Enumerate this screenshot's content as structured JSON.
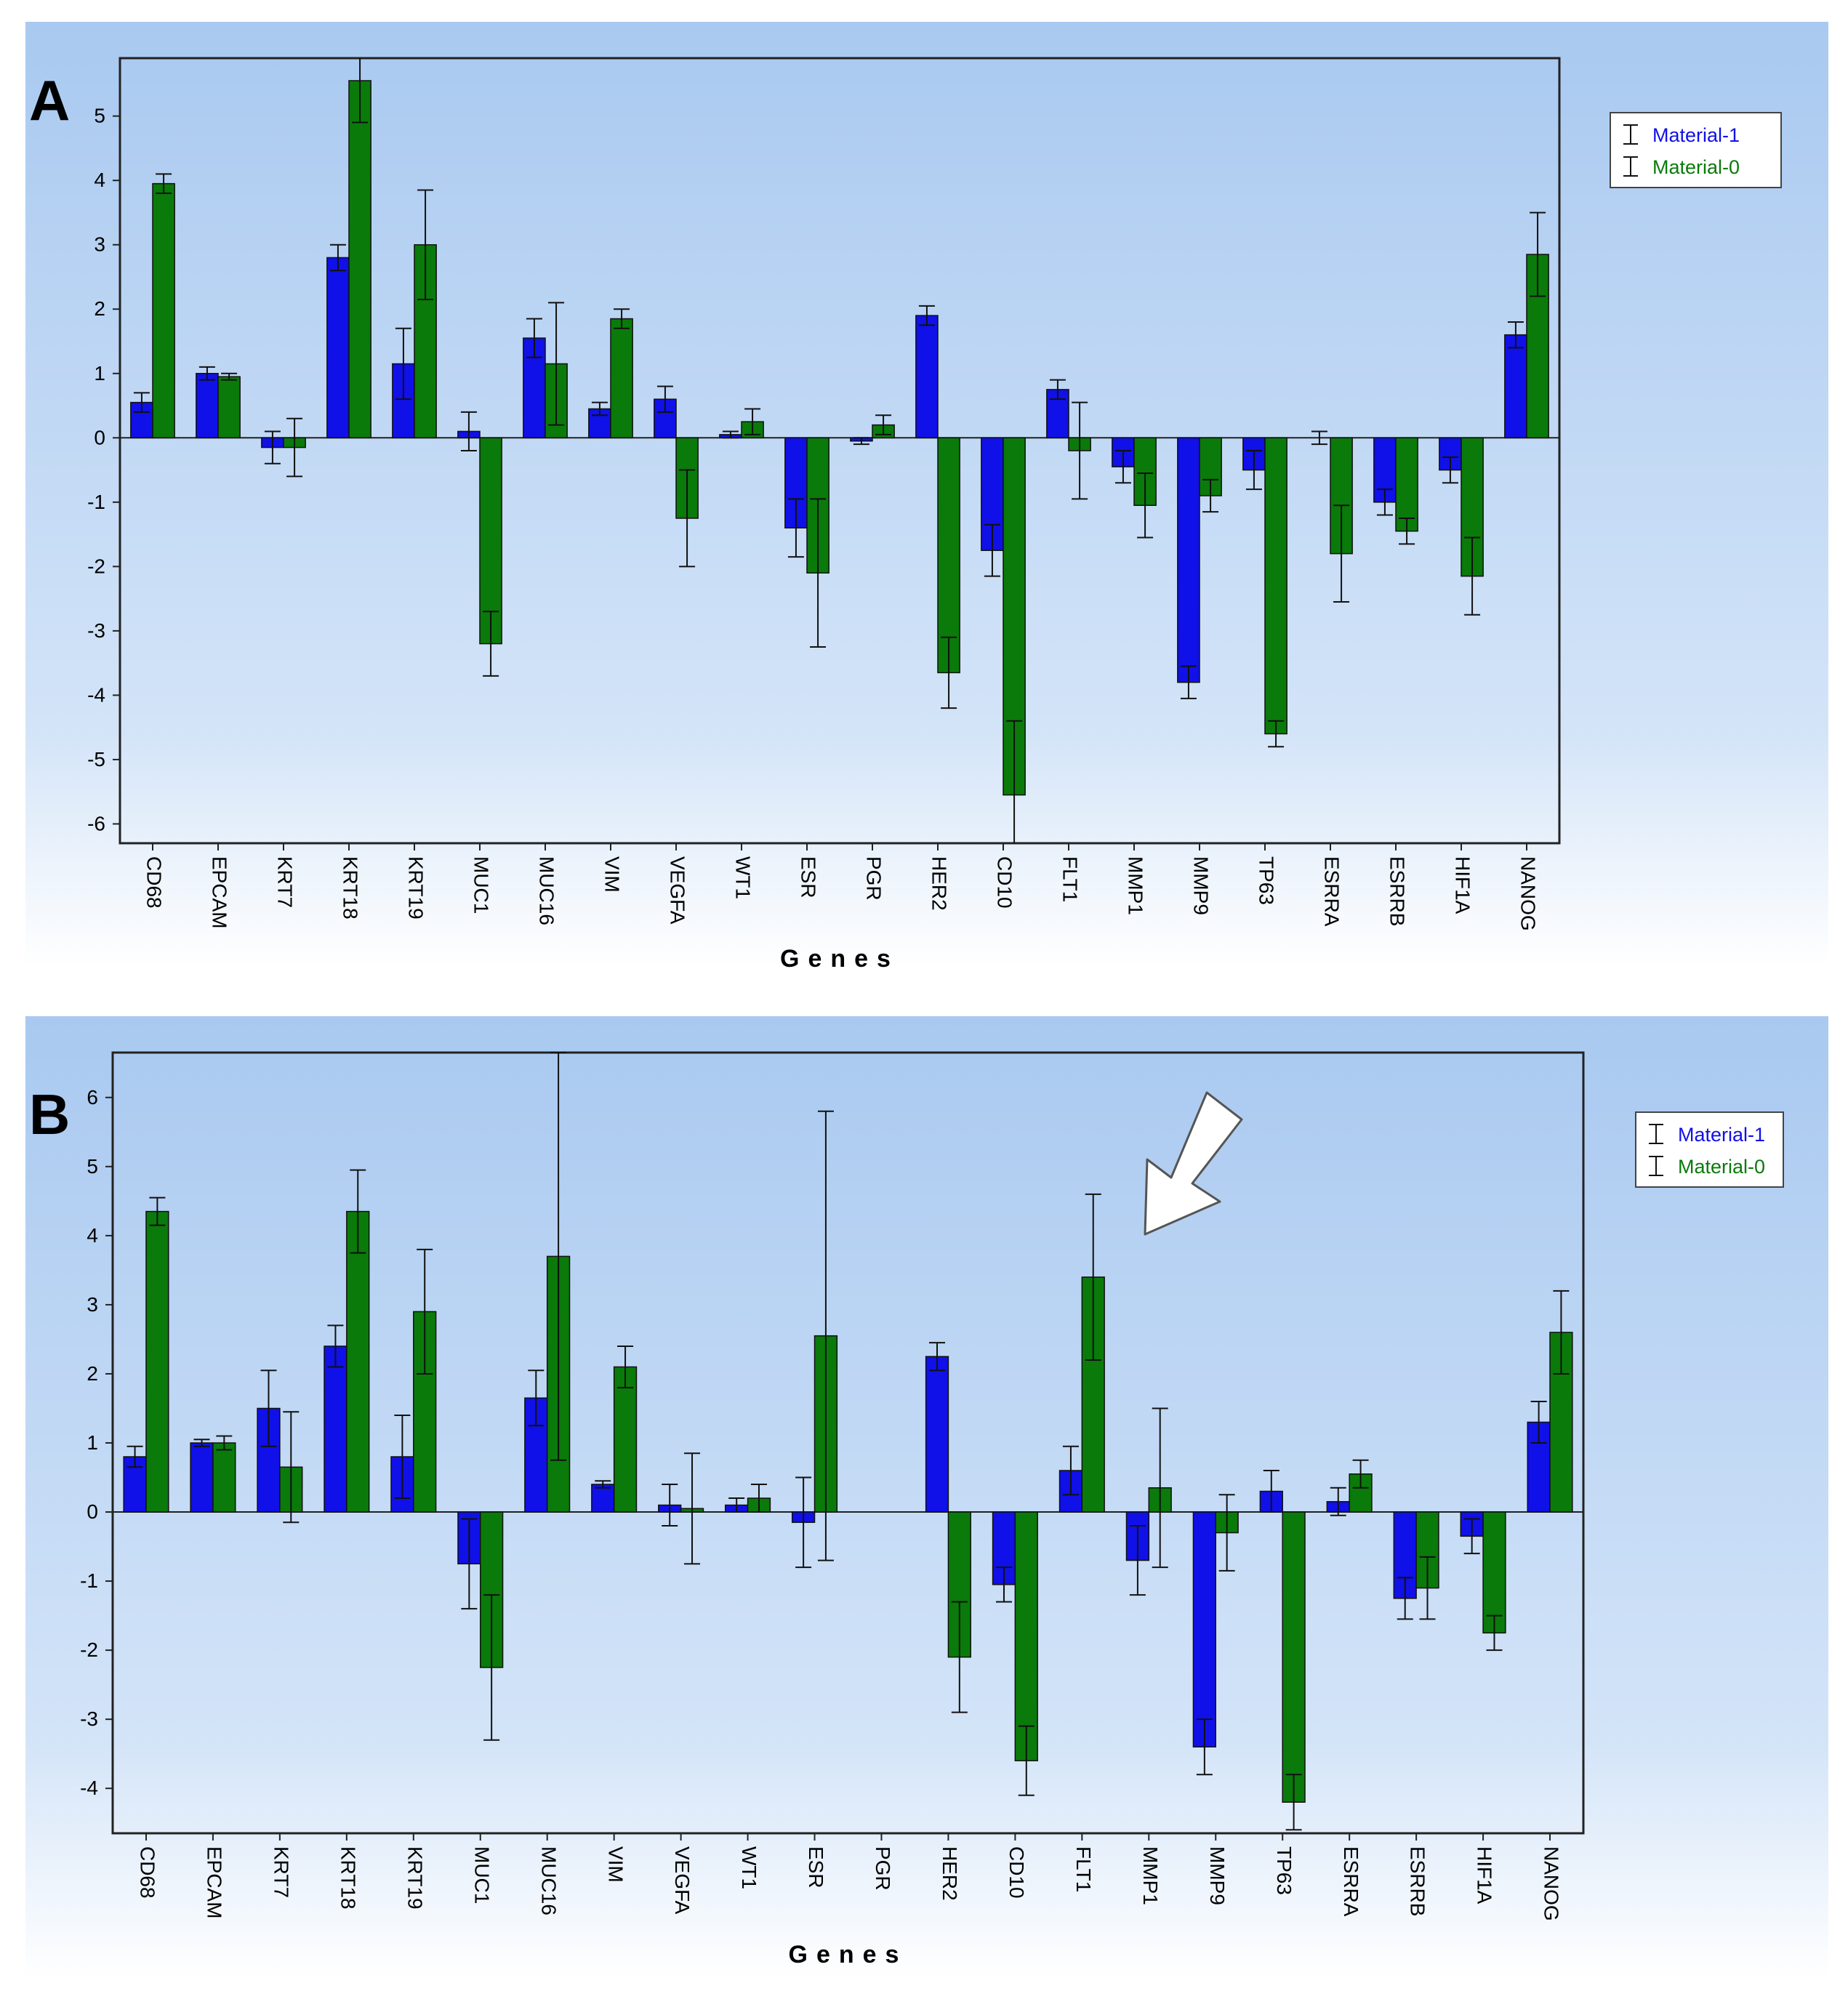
{
  "colors": {
    "material1": "#1010e8",
    "material0": "#0a7a0a",
    "panel_top": "#a9c9f0",
    "panel_bottom": "#ffffff"
  },
  "chart_data": [
    {
      "type": "bar",
      "panel_label": "A",
      "xlabel": "Genes",
      "ylabel": "",
      "ylim": [
        -6.3,
        5.9
      ],
      "yticks": [
        5,
        4,
        3,
        2,
        1,
        0,
        -1,
        -2,
        -3,
        -4,
        -5,
        -6
      ],
      "legend_position": "right",
      "categories": [
        "CD68",
        "EPCAM",
        "KRT7",
        "KRT18",
        "KRT19",
        "MUC1",
        "MUC16",
        "VIM",
        "VEGFA",
        "WT1",
        "ESR",
        "PGR",
        "HER2",
        "CD10",
        "FLT1",
        "MMP1",
        "MMP9",
        "TP63",
        "ESRRA",
        "ESRRB",
        "HIF1A",
        "NANOG"
      ],
      "series": [
        {
          "name": "Material-1",
          "values": [
            0.55,
            1.0,
            -0.15,
            2.8,
            1.15,
            0.1,
            1.55,
            0.45,
            0.6,
            0.05,
            -1.4,
            -0.05,
            1.9,
            -1.75,
            0.75,
            -0.45,
            -3.8,
            -0.5,
            0.0,
            -1.0,
            -0.5,
            1.6
          ],
          "errors": [
            0.15,
            0.1,
            0.25,
            0.2,
            0.55,
            0.3,
            0.3,
            0.1,
            0.2,
            0.05,
            0.45,
            0.05,
            0.15,
            0.4,
            0.15,
            0.25,
            0.25,
            0.3,
            0.1,
            0.2,
            0.2,
            0.2
          ]
        },
        {
          "name": "Material-0",
          "values": [
            3.95,
            0.95,
            -0.15,
            5.55,
            3.0,
            -3.2,
            1.15,
            1.85,
            -1.25,
            0.25,
            -2.1,
            0.2,
            -3.65,
            -5.55,
            -0.2,
            -1.05,
            -0.9,
            -4.6,
            -1.8,
            -1.45,
            -2.15,
            2.85
          ],
          "errors": [
            0.15,
            0.05,
            0.45,
            0.65,
            0.85,
            0.5,
            0.95,
            0.15,
            0.75,
            0.2,
            1.15,
            0.15,
            0.55,
            1.15,
            0.75,
            0.5,
            0.25,
            0.2,
            0.75,
            0.2,
            0.6,
            0.65
          ]
        }
      ]
    },
    {
      "type": "bar",
      "panel_label": "B",
      "xlabel": "Genes",
      "ylabel": "",
      "ylim": [
        -4.65,
        6.65
      ],
      "yticks": [
        6,
        5,
        4,
        3,
        2,
        1,
        0,
        -1,
        -2,
        -3,
        -4
      ],
      "legend_position": "right",
      "annotation": "arrow pointing at FLT1 / MMP1",
      "categories": [
        "CD68",
        "EPCAM",
        "KRT7",
        "KRT18",
        "KRT19",
        "MUC1",
        "MUC16",
        "VIM",
        "VEGFA",
        "WT1",
        "ESR",
        "PGR",
        "HER2",
        "CD10",
        "FLT1",
        "MMP1",
        "MMP9",
        "TP63",
        "ESRRA",
        "ESRRB",
        "HIF1A",
        "NANOG"
      ],
      "series": [
        {
          "name": "Material-1",
          "values": [
            0.8,
            1.0,
            1.5,
            2.4,
            0.8,
            -0.75,
            1.65,
            0.4,
            0.1,
            0.1,
            -0.15,
            0.0,
            2.25,
            -1.05,
            0.6,
            -0.7,
            -3.4,
            0.3,
            0.15,
            -1.25,
            -0.35,
            1.3
          ],
          "errors": [
            0.15,
            0.05,
            0.55,
            0.3,
            0.6,
            0.65,
            0.4,
            0.05,
            0.3,
            0.1,
            0.65,
            0.0,
            0.2,
            0.25,
            0.35,
            0.5,
            0.4,
            0.3,
            0.2,
            0.3,
            0.25,
            0.3
          ]
        },
        {
          "name": "Material-0",
          "values": [
            4.35,
            1.0,
            0.65,
            4.35,
            2.9,
            -2.25,
            3.7,
            2.1,
            0.05,
            0.2,
            2.55,
            0.0,
            -2.1,
            -3.6,
            3.4,
            0.35,
            -0.3,
            -4.2,
            0.55,
            -1.1,
            -1.75,
            2.6
          ],
          "errors": [
            0.2,
            0.1,
            0.8,
            0.6,
            0.9,
            1.05,
            2.95,
            0.3,
            0.8,
            0.2,
            3.25,
            0.0,
            0.8,
            0.5,
            1.2,
            1.15,
            0.55,
            0.4,
            0.2,
            0.45,
            0.25,
            0.6
          ]
        }
      ]
    }
  ]
}
